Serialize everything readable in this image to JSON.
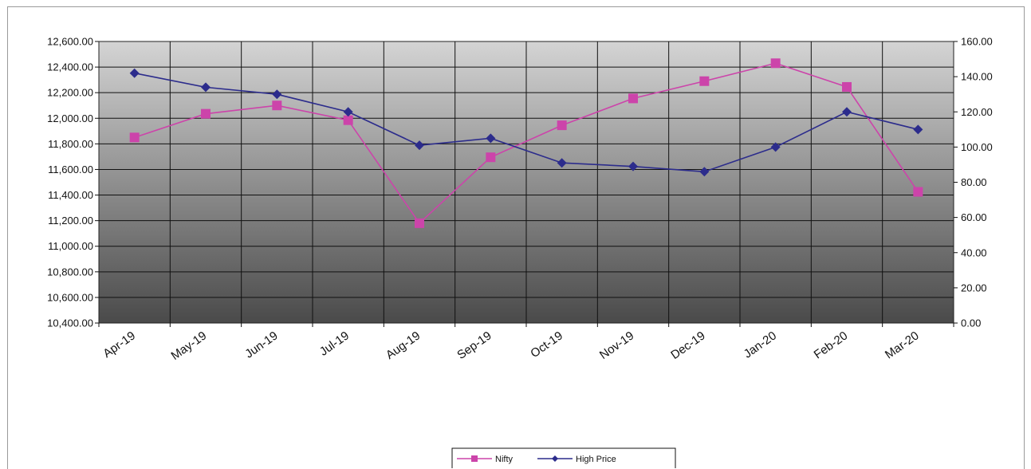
{
  "chart_data": {
    "type": "line",
    "title": "",
    "xlabel": "",
    "ylabel": "",
    "categories": [
      "Apr-19",
      "May-19",
      "Jun-19",
      "Jul-19",
      "Aug-19",
      "Sep-19",
      "Oct-19",
      "Nov-19",
      "Dec-19",
      "Jan-20",
      "Feb-20",
      "Mar-20"
    ],
    "y_left": {
      "min": 10400,
      "max": 12600,
      "step": 200,
      "tick_labels": [
        "12,600.00",
        "12,400.00",
        "12,200.00",
        "12,000.00",
        "11,800.00",
        "11,600.00",
        "11,400.00",
        "11,200.00",
        "11,000.00",
        "10,800.00",
        "10,600.00",
        "10,400.00"
      ]
    },
    "y_right": {
      "min": 0,
      "max": 160,
      "step": 20,
      "tick_labels": [
        "160.00",
        "140.00",
        "120.00",
        "100.00",
        "80.00",
        "60.00",
        "40.00",
        "20.00",
        "0.00"
      ]
    },
    "series": [
      {
        "name": "Nifty",
        "axis": "left",
        "color": "#cc44aa",
        "marker": "square",
        "values": [
          11850,
          12035,
          12100,
          11985,
          11180,
          11695,
          11945,
          12155,
          12290,
          12430,
          12245,
          11425
        ]
      },
      {
        "name": "High Price",
        "axis": "right",
        "color": "#2c2c8c",
        "marker": "diamond",
        "values": [
          142,
          134,
          130,
          120,
          101,
          105,
          91,
          89,
          86,
          100,
          120,
          110
        ]
      }
    ],
    "legend_position": "bottom-center",
    "grid": true
  }
}
